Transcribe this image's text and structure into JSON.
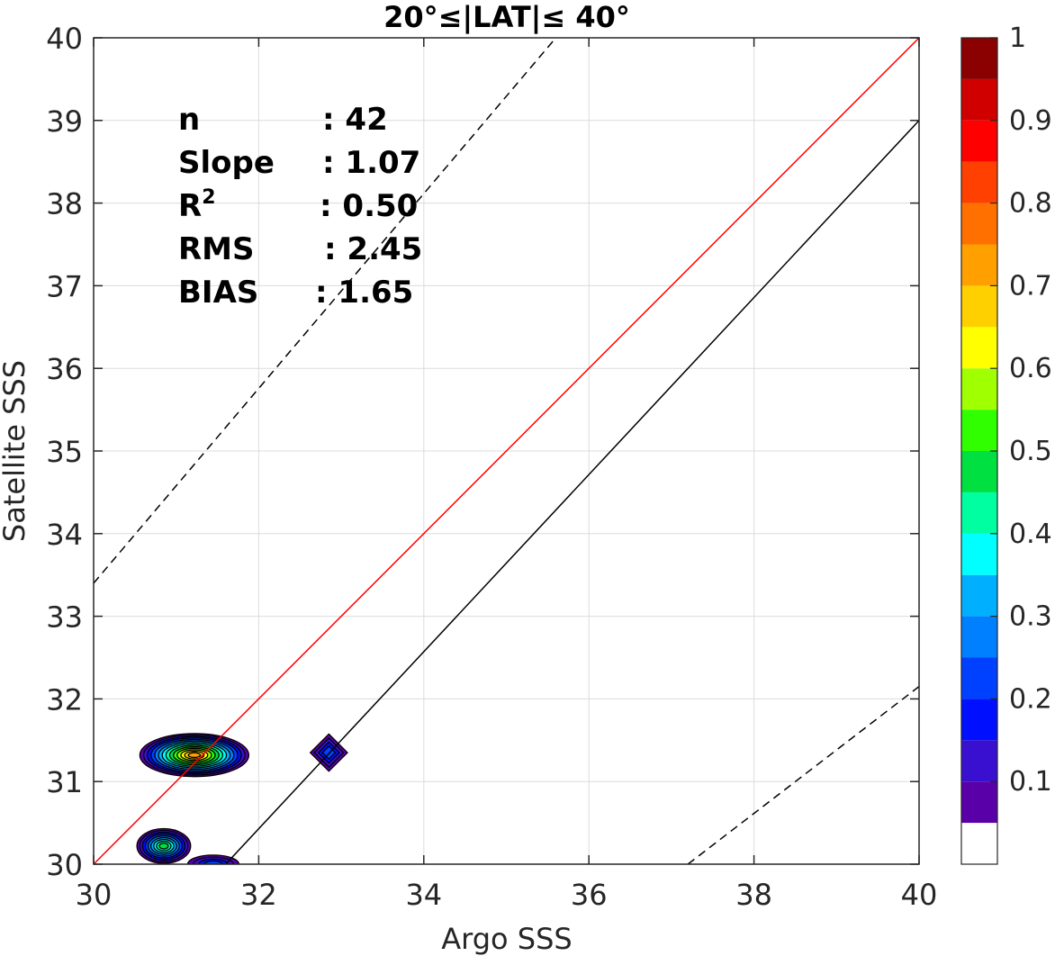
{
  "chart_data": {
    "type": "contour",
    "title": "20°≤|LAT|≤ 40°",
    "xlabel": "Argo SSS",
    "ylabel": "Satellite SSS",
    "xlim": [
      30,
      40
    ],
    "ylim": [
      30,
      40
    ],
    "x_ticks": [
      "30",
      "32",
      "34",
      "36",
      "38",
      "40"
    ],
    "y_ticks": [
      "30",
      "31",
      "32",
      "33",
      "34",
      "35",
      "36",
      "37",
      "38",
      "39",
      "40"
    ],
    "grid": true,
    "stats": [
      {
        "label": "n",
        "sep": ": 42"
      },
      {
        "label": "Slope",
        "sep": ": 1.07"
      },
      {
        "label": "R",
        "sup": "2",
        "sep": ": 0.50"
      },
      {
        "label": "RMS",
        "sep": ": 2.45"
      },
      {
        "label": "BIAS",
        "sep": ": 1.65"
      }
    ],
    "lines": [
      {
        "kind": "one-to-one",
        "color": "#ff0000",
        "style": "solid",
        "points": [
          [
            30,
            30
          ],
          [
            40,
            40
          ]
        ]
      },
      {
        "kind": "fit",
        "color": "#000000",
        "style": "solid",
        "points": [
          [
            31.6,
            30
          ],
          [
            40,
            39
          ]
        ]
      },
      {
        "kind": "upper-bound",
        "color": "#000000",
        "style": "dashed",
        "points": [
          [
            30,
            33.4
          ],
          [
            35.6,
            40
          ]
        ]
      },
      {
        "kind": "lower-bound",
        "color": "#000000",
        "style": "dashed",
        "points": [
          [
            37.2,
            30
          ],
          [
            40,
            32.15
          ]
        ]
      }
    ],
    "density_blobs": [
      {
        "cx": 31.22,
        "cy": 31.32,
        "rx": 1.32,
        "ry": 0.52,
        "peak": 0.72
      },
      {
        "cx": 30.85,
        "cy": 30.22,
        "rx": 0.65,
        "ry": 0.42,
        "peak": 0.45
      },
      {
        "cx": 31.45,
        "cy": 30.0,
        "rx": 0.62,
        "ry": 0.22,
        "peak": 0.22
      },
      {
        "cx": 32.85,
        "cy": 31.35,
        "rx": 0.45,
        "ry": 0.45,
        "peak": 0.2
      }
    ],
    "colorbar": {
      "min": 0,
      "max": 1,
      "tick_labels": [
        "0.1",
        "0.2",
        "0.3",
        "0.4",
        "0.5",
        "0.6",
        "0.7",
        "0.8",
        "0.9",
        "1"
      ],
      "tick_values": [
        0.1,
        0.2,
        0.3,
        0.4,
        0.5,
        0.6,
        0.7,
        0.8,
        0.9,
        1.0
      ],
      "colors": [
        "#ffffff",
        "#5a00a8",
        "#3a10d0",
        "#0010ff",
        "#0040ff",
        "#0080ff",
        "#00b0ff",
        "#00ffff",
        "#00ffa0",
        "#00e040",
        "#30ff00",
        "#a0ff00",
        "#ffff00",
        "#ffd000",
        "#ffa000",
        "#ff7000",
        "#ff4000",
        "#ff0000",
        "#d00000",
        "#8b0000"
      ]
    }
  }
}
